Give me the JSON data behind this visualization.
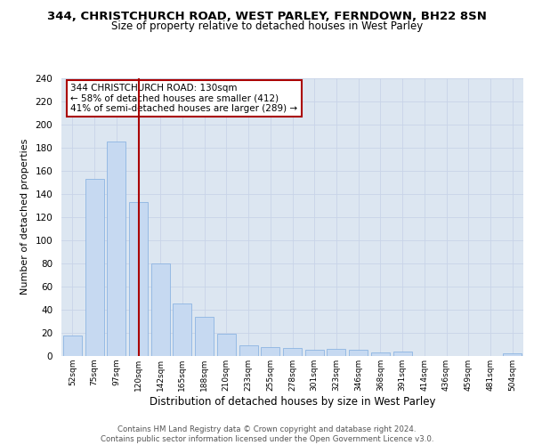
{
  "title1": "344, CHRISTCHURCH ROAD, WEST PARLEY, FERNDOWN, BH22 8SN",
  "title2": "Size of property relative to detached houses in West Parley",
  "xlabel": "Distribution of detached houses by size in West Parley",
  "ylabel": "Number of detached properties",
  "bar_labels": [
    "52sqm",
    "75sqm",
    "97sqm",
    "120sqm",
    "142sqm",
    "165sqm",
    "188sqm",
    "210sqm",
    "233sqm",
    "255sqm",
    "278sqm",
    "301sqm",
    "323sqm",
    "346sqm",
    "368sqm",
    "391sqm",
    "414sqm",
    "436sqm",
    "459sqm",
    "481sqm",
    "504sqm"
  ],
  "bar_values": [
    18,
    153,
    185,
    133,
    80,
    45,
    34,
    19,
    9,
    8,
    7,
    5,
    6,
    5,
    3,
    4,
    0,
    0,
    0,
    0,
    2
  ],
  "bar_color": "#c6d9f1",
  "bar_edge_color": "#8db4e2",
  "grid_color": "#c8d4e8",
  "background_color": "#dce6f1",
  "annotation_text_line1": "344 CHRISTCHURCH ROAD: 130sqm",
  "annotation_text_line2": "← 58% of detached houses are smaller (412)",
  "annotation_text_line3": "41% of semi-detached houses are larger (289) →",
  "annotation_box_color": "#ffffff",
  "annotation_line_color": "#aa0000",
  "footnote": "Contains HM Land Registry data © Crown copyright and database right 2024.\nContains public sector information licensed under the Open Government Licence v3.0.",
  "ylim": [
    0,
    240
  ],
  "yticks": [
    0,
    20,
    40,
    60,
    80,
    100,
    120,
    140,
    160,
    180,
    200,
    220,
    240
  ],
  "red_line_bar_index": 3,
  "fig_width": 6.0,
  "fig_height": 5.0
}
